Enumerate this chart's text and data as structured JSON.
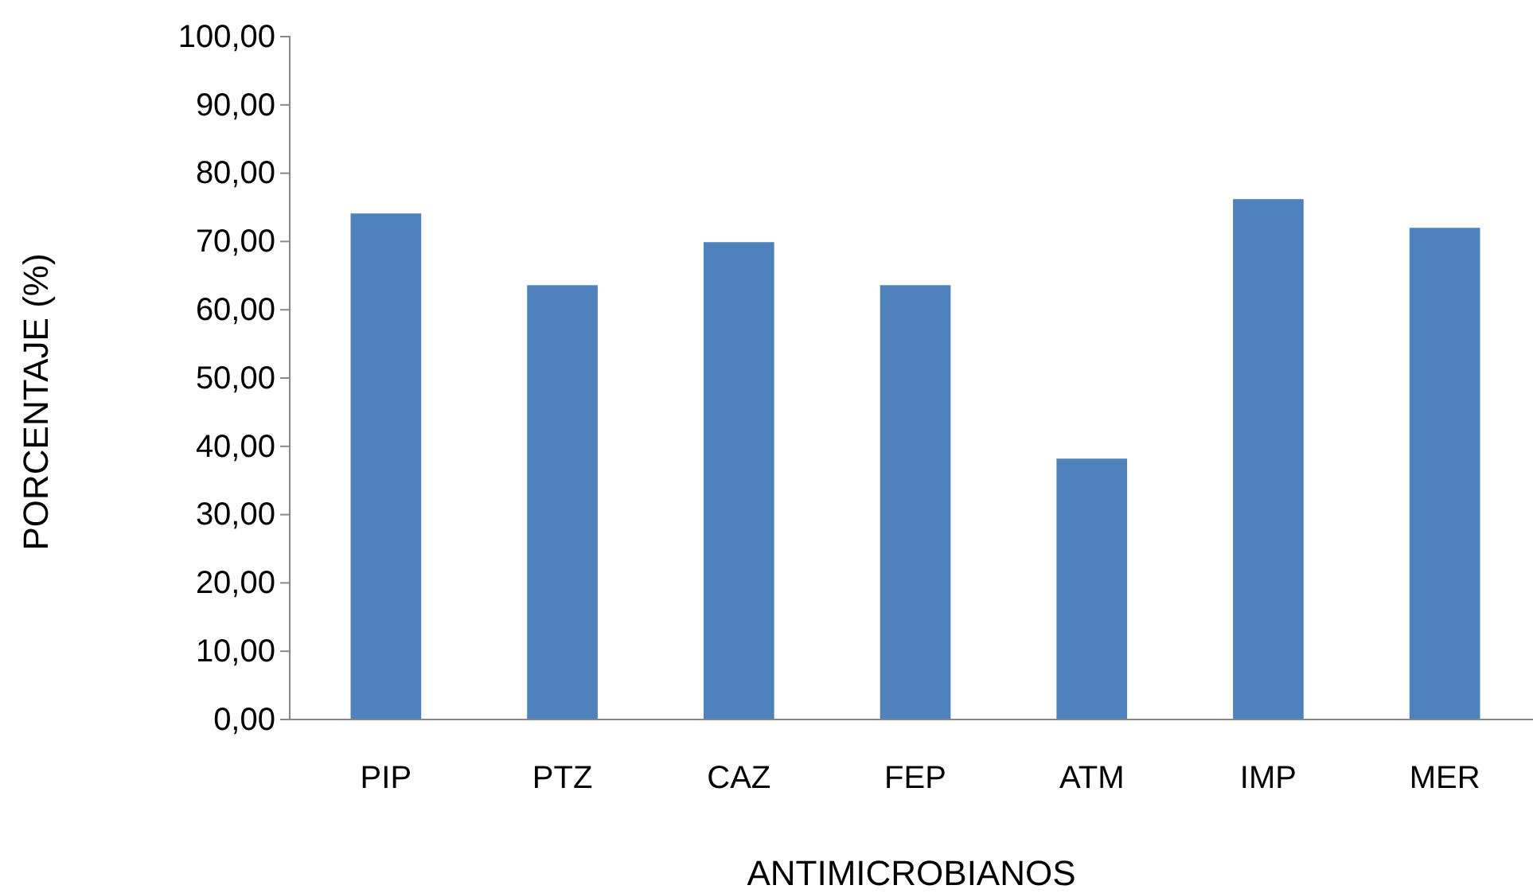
{
  "chart_data": {
    "type": "bar",
    "xlabel": "ANTIMICROBIANOS",
    "ylabel": "PORCENTAJE (%)",
    "categories": [
      "PIP",
      "PTZ",
      "CAZ",
      "FEP",
      "ATM",
      "IMP",
      "MER"
    ],
    "values": [
      74.1,
      63.6,
      69.9,
      63.6,
      38.2,
      76.2,
      72.0
    ],
    "color": "#4f81bd",
    "ylim": [
      0,
      100
    ],
    "yticks": [
      {
        "value": 0,
        "label": "0,00"
      },
      {
        "value": 10,
        "label": "10,00"
      },
      {
        "value": 20,
        "label": "20,00"
      },
      {
        "value": 30,
        "label": "30,00"
      },
      {
        "value": 40,
        "label": "40,00"
      },
      {
        "value": 50,
        "label": "50,00"
      },
      {
        "value": 60,
        "label": "60,00"
      },
      {
        "value": 70,
        "label": "70,00"
      },
      {
        "value": 80,
        "label": "80,00"
      },
      {
        "value": 90,
        "label": "90,00"
      },
      {
        "value": 100,
        "label": "100,00"
      }
    ],
    "grid": false,
    "legend": false
  }
}
